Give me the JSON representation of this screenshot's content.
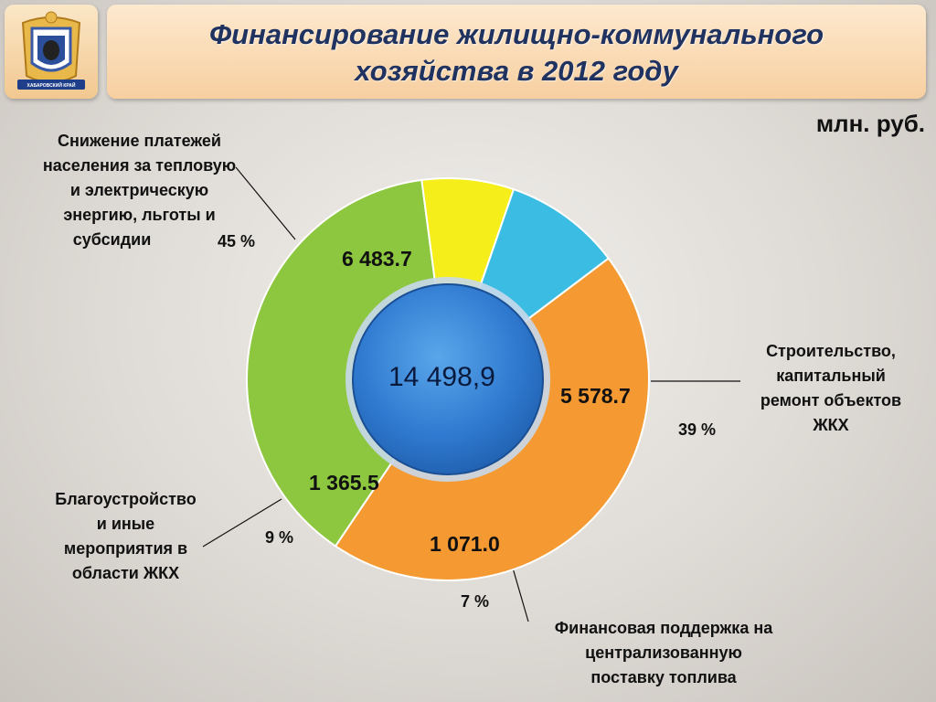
{
  "header": {
    "title_lines": [
      "Финансирование жилищно-коммунального",
      "хозяйства в 2012 году"
    ],
    "unit": "млн. руб.",
    "emblem_text": "ХАБАРОВСКИЙ КРАЙ"
  },
  "chart_data": {
    "type": "pie",
    "title": "Финансирование жилищно-коммунального хозяйства в 2012 году",
    "unit": "млн. руб.",
    "total_label": "14 498,9",
    "slices": [
      {
        "label_lines": [
          "Снижение платежей",
          "населения за тепловую",
          "и электрическую",
          "энергию, льготы и",
          "субсидии"
        ],
        "value": 6483.7,
        "value_label": "6 483.7",
        "percent_label": "45 %",
        "color": "#f59a33"
      },
      {
        "label_lines": [
          "Строительство,",
          "капитальный",
          "ремонт объектов",
          "ЖКХ"
        ],
        "value": 5578.7,
        "value_label": "5 578.7",
        "percent_label": "39 %",
        "color": "#8dc63f"
      },
      {
        "label_lines": [
          "Финансовая поддержка на",
          "централизованную",
          "поставку топлива"
        ],
        "value": 1071.0,
        "value_label": "1 071.0",
        "percent_label": "7 %",
        "color": "#f5ee1a"
      },
      {
        "label_lines": [
          "Благоустройство",
          "и иные",
          "мероприятия в",
          "области ЖКХ"
        ],
        "value": 1365.5,
        "value_label": "1 365.5",
        "percent_label": "9 %",
        "color": "#3bbde3"
      }
    ]
  }
}
